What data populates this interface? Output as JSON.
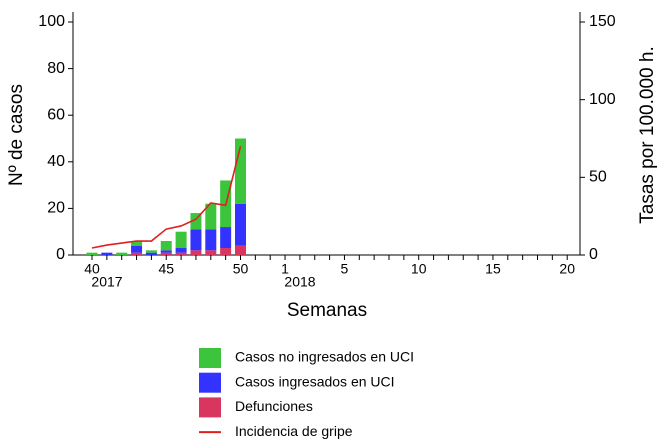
{
  "chart_data": {
    "type": "stacked_bar_line",
    "y_axis_label": "Nº de casos",
    "y2_axis_label": "Tasas por 100.000 h.",
    "x_axis_label": "Semanas",
    "categories": [
      "40",
      null,
      null,
      null,
      null,
      "45",
      null,
      null,
      null,
      null,
      "50",
      null,
      null,
      "1",
      null,
      null,
      null,
      "5",
      null,
      null,
      null,
      null,
      "10",
      null,
      null,
      null,
      null,
      "15",
      null,
      null,
      null,
      null,
      "20"
    ],
    "year_labels": [
      "2017",
      "2018"
    ],
    "ylim": [
      0,
      100
    ],
    "yticks": [
      0,
      20,
      40,
      60,
      80,
      100
    ],
    "y2lim": [
      0,
      150
    ],
    "y2ticks": [
      0,
      50,
      100,
      150
    ],
    "series": [
      {
        "name": "Casos no ingresados en UCI",
        "color": "#3cc43c",
        "values": [
          1,
          0,
          1,
          2,
          1,
          4,
          7,
          7,
          11,
          20,
          28,
          null,
          null,
          null,
          null,
          null,
          null,
          null,
          null,
          null,
          null,
          null,
          null,
          null,
          null,
          null,
          null,
          null,
          null,
          null,
          null,
          null,
          null
        ]
      },
      {
        "name": "Casos ingresados en UCI",
        "color": "#3333ff",
        "values": [
          0,
          1,
          0,
          3,
          1,
          1,
          2,
          9,
          9,
          9,
          18,
          null,
          null,
          null,
          null,
          null,
          null,
          null,
          null,
          null,
          null,
          null,
          null,
          null,
          null,
          null,
          null,
          null,
          null,
          null,
          null,
          null,
          null
        ]
      },
      {
        "name": "Defunciones",
        "color": "#d9365f",
        "values": [
          0,
          0,
          0,
          1,
          0,
          1,
          1,
          2,
          2,
          3,
          4,
          null,
          null,
          null,
          null,
          null,
          null,
          null,
          null,
          null,
          null,
          null,
          null,
          null,
          null,
          null,
          null,
          null,
          null,
          null,
          null,
          null,
          null
        ]
      },
      {
        "name": "Incidencia de gripe",
        "color": "#e02020",
        "axis": "y2",
        "values": [
          4.5,
          6.4,
          7.7,
          9,
          9,
          16.7,
          18.7,
          23,
          33.5,
          32,
          70,
          null,
          null,
          null,
          null,
          null,
          null,
          null,
          null,
          null,
          null,
          null,
          null,
          null,
          null,
          null,
          null,
          null,
          null,
          null,
          null,
          null,
          null
        ]
      }
    ]
  }
}
